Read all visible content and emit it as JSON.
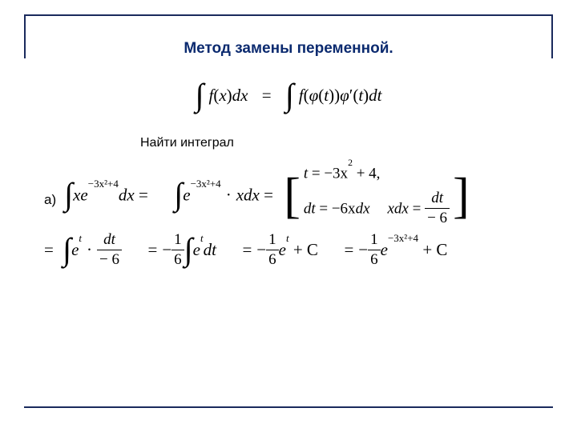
{
  "title": "Метод замены переменной.",
  "subtitle": "Найти интеграл",
  "label_a": "а)",
  "colors": {
    "frame": "#1a2a5c",
    "title": "#0b2a6f",
    "text": "#000000",
    "background": "#ffffff"
  },
  "fonts": {
    "title_size": 19,
    "subtitle_size": 16,
    "math_size": 21,
    "math_family": "Times New Roman"
  },
  "formula_main": {
    "lhs_int": "∫",
    "lhs_f": "f",
    "lhs_arg": "x",
    "lhs_dx": "dx",
    "eq": "=",
    "rhs_int": "∫",
    "rhs_f": "f",
    "rhs_phi": "φ",
    "rhs_t": "t",
    "rhs_phi2": "φ",
    "rhs_prime": "′",
    "rhs_t2": "t",
    "rhs_dt": "dt"
  },
  "row1": {
    "p1_int": "∫",
    "p1_x": "x",
    "p1_e": "e",
    "p1_exp_neg3x2p4": "−3x²+4",
    "p1_dx": "dx",
    "eq": "=",
    "p2_int": "∫",
    "p2_e": "e",
    "p2_exp": "−3x²+4",
    "p2_dot": "·",
    "p2_x": "x",
    "p2_dx": "dx",
    "sub_t": "t",
    "sub_eq": "=",
    "sub_neg3x2": "−3x",
    "sub_sq": "2",
    "sub_p4": "+ 4,",
    "sub_dt": "dt",
    "sub_eq2": "=",
    "sub_neg6x": "−6x",
    "sub_dx": "dx",
    "sub_xdx": "xdx",
    "sub_eq3": "=",
    "sub_frac_num": "dt",
    "sub_frac_den": "− 6"
  },
  "row2": {
    "eq": "=",
    "p1_int": "∫",
    "p1_e": "e",
    "p1_t": "t",
    "p1_dot": "·",
    "p1_frac_num": "dt",
    "p1_frac_den": "− 6",
    "p2_neg": "−",
    "p2_frac_num": "1",
    "p2_frac_den": "6",
    "p2_int": "∫",
    "p2_e": "e",
    "p2_t": "t",
    "p2_dt": "dt",
    "p3_neg": "−",
    "p3_frac_num": "1",
    "p3_frac_den": "6",
    "p3_e": "e",
    "p3_t": "t",
    "p3_pC": "+ C",
    "p4_neg": "−",
    "p4_frac_num": "1",
    "p4_frac_den": "6",
    "p4_e": "e",
    "p4_exp": "−3x²+4",
    "p4_pC": "+ C"
  }
}
